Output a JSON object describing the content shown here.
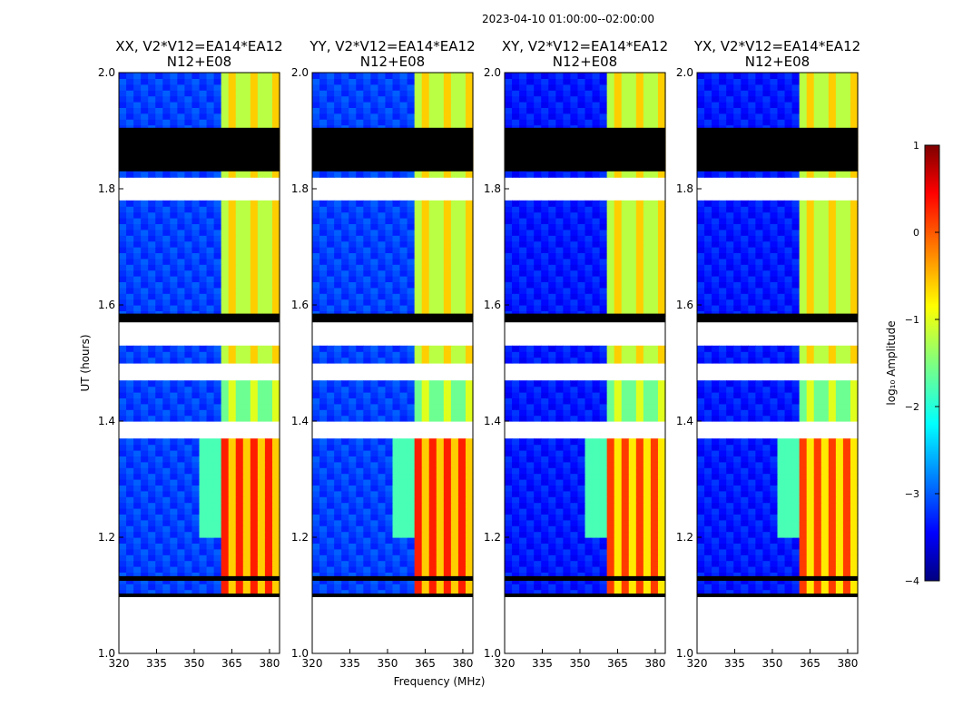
{
  "suptitle": "2023-04-10  01:00:00--02:00:00",
  "chart_data": {
    "type": "heatmap",
    "xlabel": "Frequency (MHz)",
    "ylabel": "UT (hours)",
    "xlim": [
      320,
      384
    ],
    "ylim": [
      1.0,
      2.0
    ],
    "xticks": [
      320,
      335,
      350,
      365,
      380
    ],
    "yticks": [
      1.0,
      1.2,
      1.4,
      1.6,
      1.8,
      2.0
    ],
    "colorbar": {
      "label": "log₁₀ Amplitude",
      "range": [
        -4,
        1
      ],
      "ticks": [
        1,
        0,
        -1,
        -2,
        -3,
        -4
      ],
      "tick_labels": [
        "1",
        "0",
        "−1",
        "−2",
        "−3",
        "−4"
      ],
      "colormap": "jet"
    },
    "panels": [
      {
        "title_line1": "XX, V2*V12=EA14*EA12",
        "title_line2": "N12+E08",
        "cross_pol": false
      },
      {
        "title_line1": "YY, V2*V12=EA14*EA12",
        "title_line2": "N12+E08",
        "cross_pol": false
      },
      {
        "title_line1": "XY, V2*V12=EA14*EA12",
        "title_line2": "N12+E08",
        "cross_pol": true
      },
      {
        "title_line1": "YX, V2*V12=EA14*EA12",
        "title_line2": "N12+E08",
        "cross_pol": true
      }
    ],
    "flagged_gaps_ut": [
      [
        1.0,
        1.1
      ],
      [
        1.375,
        1.4
      ],
      [
        1.47,
        1.5
      ],
      [
        1.53,
        1.58
      ],
      [
        1.78,
        1.82
      ]
    ],
    "band_start_mhz": 362
  }
}
